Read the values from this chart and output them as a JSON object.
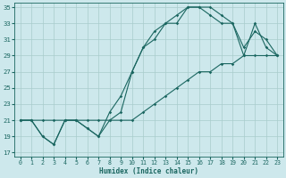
{
  "xlabel": "Humidex (Indice chaleur)",
  "bg_color": "#cde8ec",
  "grid_color": "#a8cccc",
  "line_color": "#1a6660",
  "xlim": [
    -0.5,
    23.5
  ],
  "ylim": [
    16.5,
    35.5
  ],
  "xticks": [
    0,
    1,
    2,
    3,
    4,
    5,
    6,
    7,
    8,
    9,
    10,
    11,
    12,
    13,
    14,
    15,
    16,
    17,
    18,
    19,
    20,
    21,
    22,
    23
  ],
  "yticks": [
    17,
    19,
    21,
    23,
    25,
    27,
    29,
    31,
    33,
    35
  ],
  "line1_x": [
    0,
    1,
    2,
    3,
    4,
    5,
    6,
    7,
    8,
    9,
    10,
    11,
    12,
    13,
    14,
    15,
    16,
    17,
    18,
    19,
    20,
    21,
    22,
    23
  ],
  "line1_y": [
    21,
    21,
    21,
    21,
    21,
    21,
    21,
    21,
    21,
    21,
    21,
    22,
    23,
    24,
    25,
    26,
    27,
    27,
    28,
    28,
    29,
    29,
    29,
    29
  ],
  "line2_x": [
    0,
    1,
    2,
    3,
    4,
    5,
    6,
    7,
    8,
    9,
    10,
    11,
    12,
    13,
    14,
    15,
    16,
    17,
    18,
    19,
    20,
    21,
    22,
    23
  ],
  "line2_y": [
    21,
    21,
    19,
    18,
    21,
    21,
    20,
    19,
    22,
    24,
    27,
    30,
    32,
    33,
    34,
    35,
    35,
    35,
    34,
    33,
    30,
    32,
    31,
    29
  ],
  "line3_x": [
    0,
    1,
    2,
    3,
    4,
    5,
    6,
    7,
    8,
    9,
    10,
    11,
    12,
    13,
    14,
    15,
    16,
    17,
    18,
    19,
    20,
    21,
    22,
    23
  ],
  "line3_y": [
    21,
    21,
    19,
    18,
    21,
    21,
    20,
    19,
    21,
    22,
    27,
    30,
    31,
    33,
    33,
    35,
    35,
    34,
    33,
    33,
    29,
    33,
    30,
    29
  ]
}
